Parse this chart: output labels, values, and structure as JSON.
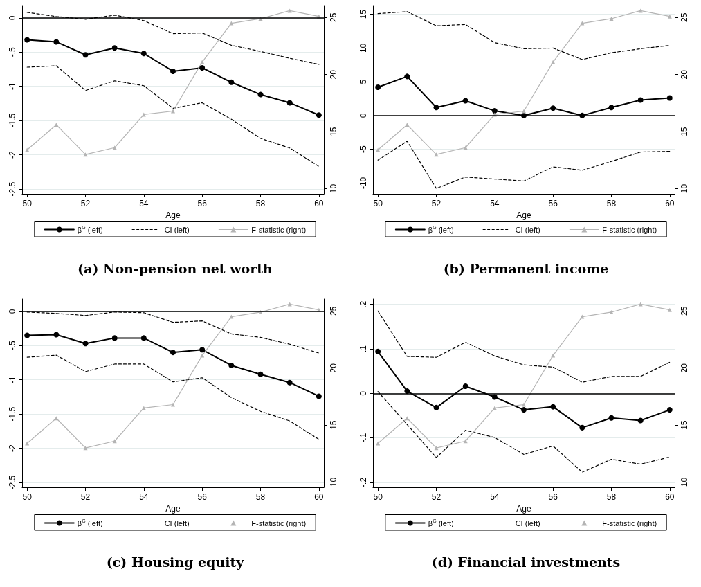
{
  "chart_data": [
    {
      "type": "line",
      "title": "(a) Non-pension net worth",
      "xlabel": "Age",
      "x": [
        50,
        51,
        52,
        53,
        54,
        55,
        56,
        57,
        58,
        59,
        60
      ],
      "xlim": [
        49.83,
        60.17
      ],
      "xticks": [
        50,
        52,
        54,
        56,
        58,
        60
      ],
      "ylim": [
        -2.57,
        0.18
      ],
      "yticks": [
        {
          "value": -2.5,
          "label": "-2.5"
        },
        {
          "value": -2,
          "label": "-2"
        },
        {
          "value": -1.5,
          "label": "-1.5"
        },
        {
          "value": -1,
          "label": "-1"
        },
        {
          "value": -0.5,
          "label": "-.5"
        },
        0
      ],
      "y2lim": [
        9.55,
        26.05
      ],
      "y2ticks": [
        10,
        15,
        20,
        25
      ],
      "grid": "y",
      "legend": "bottom",
      "ref_lines": [
        {
          "axis": "y",
          "value": 0,
          "color": "#000000"
        }
      ],
      "series": [
        {
          "name": "β$^{G}$ (left)",
          "color": "#000000",
          "marker": "circle",
          "line_style": "solid",
          "values": [
            -0.32,
            -0.35,
            -0.54,
            -0.44,
            -0.52,
            -0.78,
            -0.73,
            -0.94,
            -1.12,
            -1.24,
            -1.42
          ]
        },
        {
          "name": "CI (left)",
          "color": "#000000",
          "marker": "none",
          "line_style": "dashed",
          "values": [
            0.08,
            0.02,
            -0.02,
            0.04,
            -0.04,
            -0.23,
            -0.22,
            -0.4,
            -0.49,
            -0.59,
            -0.68
          ]
        },
        {
          "color": "#000000",
          "marker": "none",
          "line_style": "dashed",
          "values": [
            -0.72,
            -0.7,
            -1.06,
            -0.92,
            -0.99,
            -1.32,
            -1.24,
            -1.48,
            -1.76,
            -1.9,
            -2.17
          ]
        },
        {
          "name": "F-statistic (right)",
          "color": "#b4b4b4",
          "marker": "triangle",
          "line_style": "solid",
          "axis": "y2",
          "values": [
            13.4,
            15.6,
            13.0,
            13.6,
            16.5,
            16.8,
            21.1,
            24.5,
            24.9,
            25.6,
            25.1
          ]
        }
      ]
    },
    {
      "type": "line",
      "title": "(b) Permanent income",
      "xlabel": "Age",
      "x": [
        50,
        51,
        52,
        53,
        54,
        55,
        56,
        57,
        58,
        59,
        60
      ],
      "xlim": [
        49.83,
        60.17
      ],
      "xticks": [
        50,
        52,
        54,
        56,
        58,
        60
      ],
      "ylim": [
        -11.6,
        16.3
      ],
      "yticks": [
        -10,
        -5,
        0,
        5,
        10,
        15
      ],
      "y2lim": [
        9.55,
        26.05
      ],
      "y2ticks": [
        10,
        15,
        20,
        25
      ],
      "grid": "y",
      "legend": "bottom",
      "ref_lines": [
        {
          "axis": "y",
          "value": 0,
          "color": "#000000"
        }
      ],
      "series": [
        {
          "name": "β$^{G}$ (left)",
          "color": "#000000",
          "marker": "circle",
          "line_style": "solid",
          "values": [
            4.2,
            5.8,
            1.2,
            2.2,
            0.7,
            0.0,
            1.1,
            0.0,
            1.2,
            2.3,
            2.6
          ]
        },
        {
          "name": "CI (left)",
          "color": "#000000",
          "marker": "none",
          "line_style": "dashed",
          "values": [
            15.1,
            15.4,
            13.3,
            13.5,
            10.8,
            9.9,
            10.0,
            8.3,
            9.3,
            9.9,
            10.4
          ]
        },
        {
          "color": "#000000",
          "marker": "none",
          "line_style": "dashed",
          "values": [
            -6.6,
            -3.8,
            -10.8,
            -9.1,
            -9.4,
            -9.7,
            -7.6,
            -8.1,
            -6.8,
            -5.4,
            -5.3
          ]
        },
        {
          "name": "F-statistic (right)",
          "color": "#b4b4b4",
          "marker": "triangle",
          "line_style": "solid",
          "axis": "y2",
          "values": [
            13.4,
            15.6,
            13.0,
            13.6,
            16.5,
            16.8,
            21.1,
            24.5,
            24.9,
            25.6,
            25.1
          ]
        }
      ]
    },
    {
      "type": "line",
      "title": "(c) Housing equity",
      "xlabel": "Age",
      "x": [
        50,
        51,
        52,
        53,
        54,
        55,
        56,
        57,
        58,
        59,
        60
      ],
      "xlim": [
        49.83,
        60.17
      ],
      "xticks": [
        50,
        52,
        54,
        56,
        58,
        60
      ],
      "ylim": [
        -2.57,
        0.18
      ],
      "yticks": [
        {
          "value": -2.5,
          "label": "-2.5"
        },
        {
          "value": -2,
          "label": "-2"
        },
        {
          "value": -1.5,
          "label": "-1.5"
        },
        {
          "value": -1,
          "label": "-1"
        },
        {
          "value": -0.5,
          "label": "-.5"
        },
        0
      ],
      "y2lim": [
        9.55,
        26.05
      ],
      "y2ticks": [
        10,
        15,
        20,
        25
      ],
      "grid": "y",
      "legend": "bottom",
      "ref_lines": [
        {
          "axis": "y",
          "value": 0,
          "color": "#000000"
        }
      ],
      "series": [
        {
          "name": "β$^{G}$ (left)",
          "color": "#000000",
          "marker": "circle",
          "line_style": "solid",
          "values": [
            -0.35,
            -0.34,
            -0.47,
            -0.39,
            -0.39,
            -0.6,
            -0.56,
            -0.79,
            -0.92,
            -1.04,
            -1.24
          ]
        },
        {
          "name": "CI (left)",
          "color": "#000000",
          "marker": "none",
          "line_style": "dashed",
          "values": [
            -0.01,
            -0.03,
            -0.06,
            -0.01,
            -0.02,
            -0.16,
            -0.14,
            -0.33,
            -0.38,
            -0.48,
            -0.61
          ]
        },
        {
          "color": "#000000",
          "marker": "none",
          "line_style": "dashed",
          "values": [
            -0.67,
            -0.64,
            -0.88,
            -0.77,
            -0.77,
            -1.03,
            -0.97,
            -1.26,
            -1.46,
            -1.6,
            -1.87
          ]
        },
        {
          "name": "F-statistic (right)",
          "color": "#b4b4b4",
          "marker": "triangle",
          "line_style": "solid",
          "axis": "y2",
          "values": [
            13.4,
            15.6,
            13.0,
            13.6,
            16.5,
            16.8,
            21.1,
            24.5,
            24.9,
            25.6,
            25.1
          ]
        }
      ]
    },
    {
      "type": "line",
      "title": "(d) Financial investments",
      "xlabel": "Age",
      "x": [
        50,
        51,
        52,
        53,
        54,
        55,
        56,
        57,
        58,
        59,
        60
      ],
      "xlim": [
        49.83,
        60.17
      ],
      "xticks": [
        50,
        52,
        54,
        56,
        58,
        60
      ],
      "ylim": [
        -0.211,
        0.212
      ],
      "yticks": [
        {
          "value": -0.2,
          "label": "-.2"
        },
        {
          "value": -0.1,
          "label": "-.1"
        },
        0,
        {
          "value": 0.1,
          "label": ".1"
        },
        {
          "value": 0.2,
          "label": ".2"
        }
      ],
      "y2lim": [
        9.55,
        26.05
      ],
      "y2ticks": [
        10,
        15,
        20,
        25
      ],
      "grid": "y",
      "legend": "bottom",
      "ref_lines": [
        {
          "axis": "y",
          "value": 0,
          "color": "#000000"
        }
      ],
      "series": [
        {
          "name": "β$^{G}$ (left)",
          "color": "#000000",
          "marker": "circle",
          "line_style": "solid",
          "values": [
            0.094,
            0.005,
            -0.032,
            0.016,
            -0.008,
            -0.037,
            -0.03,
            -0.077,
            -0.055,
            -0.061,
            -0.037
          ]
        },
        {
          "name": "CI (left)",
          "color": "#000000",
          "marker": "none",
          "line_style": "dashed",
          "values": [
            0.185,
            0.083,
            0.081,
            0.115,
            0.084,
            0.064,
            0.059,
            0.025,
            0.038,
            0.038,
            0.07
          ]
        },
        {
          "color": "#000000",
          "marker": "none",
          "line_style": "dashed",
          "values": [
            0.004,
            -0.07,
            -0.144,
            -0.083,
            -0.099,
            -0.137,
            -0.118,
            -0.177,
            -0.148,
            -0.159,
            -0.143
          ]
        },
        {
          "name": "F-statistic (right)",
          "color": "#b4b4b4",
          "marker": "triangle",
          "line_style": "solid",
          "axis": "y2",
          "values": [
            13.4,
            15.6,
            13.0,
            13.6,
            16.5,
            16.8,
            21.1,
            24.5,
            24.9,
            25.6,
            25.1
          ]
        }
      ]
    }
  ]
}
